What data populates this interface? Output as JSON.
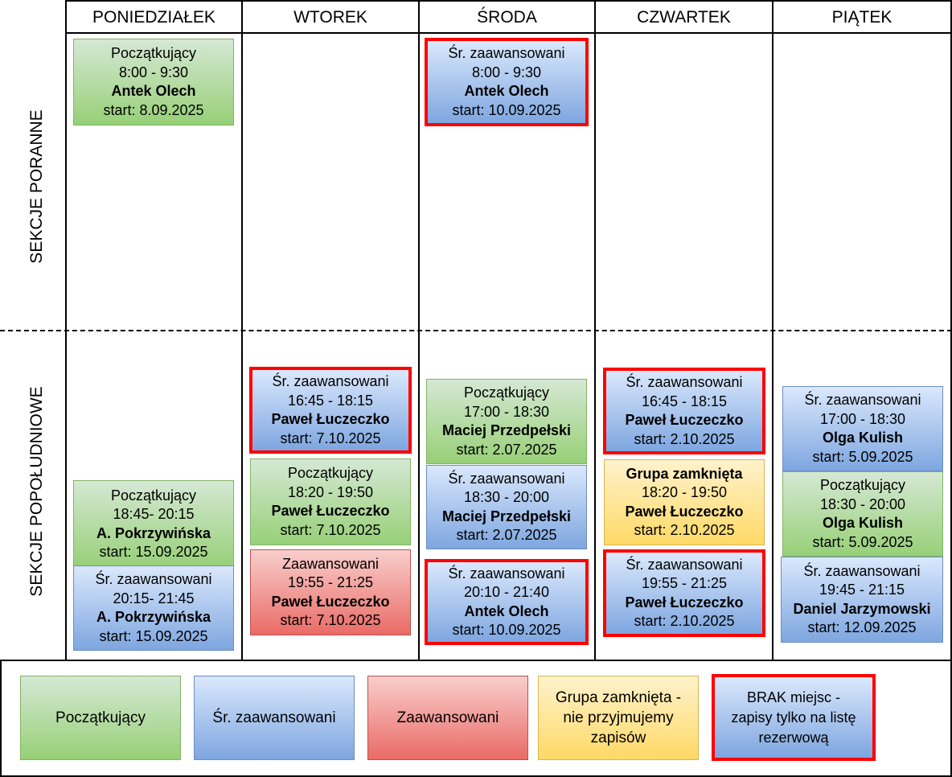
{
  "days": [
    "PONIEDZIAŁEK",
    "WTOREK",
    "ŚRODA",
    "CZWARTEK",
    "PIĄTEK"
  ],
  "sections": {
    "morning": "SEKCJE PORANNE",
    "afternoon": "SEKCJE POPOŁUDNIOWE"
  },
  "classes": [
    {
      "level": "Początkujący",
      "time": "8:00 - 9:30",
      "instructor": "Antek Olech",
      "start": "start: 8.09.2025"
    },
    {
      "level": "Śr. zaawansowani",
      "time": "8:00 - 9:30",
      "instructor": "Antek Olech",
      "start": "start: 10.09.2025"
    },
    {
      "level": "Początkujący",
      "time": "18:45- 20:15",
      "instructor": "A. Pokrzywińska",
      "start": "start: 15.09.2025"
    },
    {
      "level": "Śr. zaawansowani",
      "time": "20:15- 21:45",
      "instructor": "A. Pokrzywińska",
      "start": "start: 15.09.2025"
    },
    {
      "level": "Śr. zaawansowani",
      "time": "16:45 - 18:15",
      "instructor": "Paweł Łuczeczko",
      "start": "start: 7.10.2025"
    },
    {
      "level": "Początkujący",
      "time": "18:20 - 19:50",
      "instructor": "Paweł Łuczeczko",
      "start": "start: 7.10.2025"
    },
    {
      "level": "Zaawansowani",
      "time": "19:55 - 21:25",
      "instructor": "Paweł Łuczeczko",
      "start": "start: 7.10.2025"
    },
    {
      "level": "Początkujący",
      "time": "17:00 - 18:30",
      "instructor": "Maciej Przedpełski",
      "start": "start: 2.07.2025"
    },
    {
      "level": "Śr. zaawansowani",
      "time": "18:30 - 20:00",
      "instructor": "Maciej Przedpełski",
      "start": "start: 2.07.2025"
    },
    {
      "level": "Śr. zaawansowani",
      "time": "20:10 - 21:40",
      "instructor": "Antek Olech",
      "start": "start: 10.09.2025"
    },
    {
      "level": "Śr. zaawansowani",
      "time": "16:45 - 18:15",
      "instructor": "Paweł Łuczeczko",
      "start": "start: 2.10.2025"
    },
    {
      "level": "Grupa zamknięta",
      "time": "18:20 - 19:50",
      "instructor": "Paweł Łuczeczko",
      "start": "start: 2.10.2025"
    },
    {
      "level": "Śr. zaawansowani",
      "time": "19:55 - 21:25",
      "instructor": "Paweł Łuczeczko",
      "start": "start: 2.10.2025"
    },
    {
      "level": "Śr. zaawansowani",
      "time": "17:00 - 18:30",
      "instructor": "Olga Kulish",
      "start": "start: 5.09.2025"
    },
    {
      "level": "Początkujący",
      "time": "18:30 - 20:00",
      "instructor": "Olga Kulish",
      "start": "start: 5.09.2025"
    },
    {
      "level": "Śr. zaawansowani",
      "time": "19:45 - 21:15",
      "instructor": "Daniel Jarzymowski",
      "start": "start: 12.09.2025"
    }
  ],
  "legend": {
    "beginner": "Początkujący",
    "intermediate": "Śr. zaawansowani",
    "advanced": "Zaawansowani",
    "closed": "Grupa zamknięta - nie przyjmujemy zapisów",
    "full": "BRAK miejsc - zapisy tylko na listę rezerwową"
  },
  "colors": {
    "beginner": "#97d077",
    "intermediate": "#7ea6e0",
    "advanced": "#ea6b66",
    "closed": "#ffd966",
    "full_border": "#ff0000"
  }
}
